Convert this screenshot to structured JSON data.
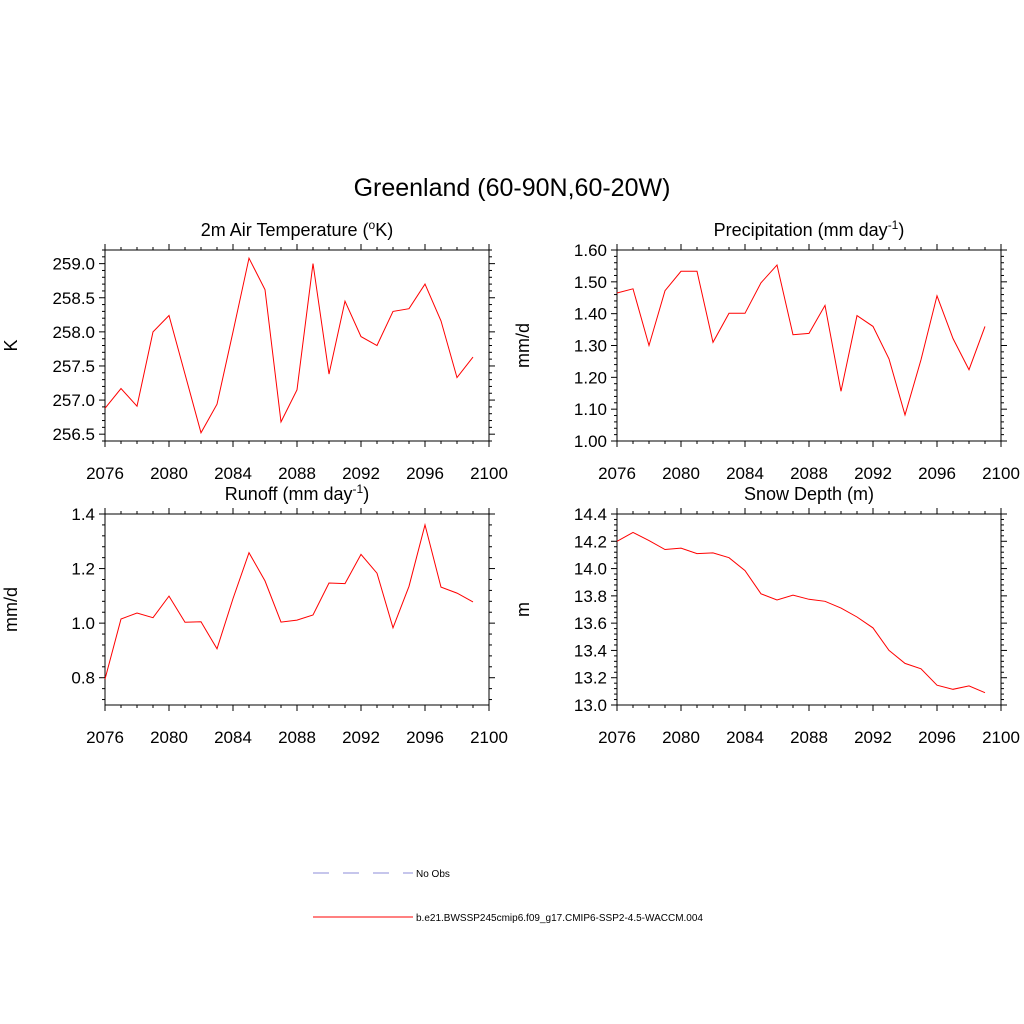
{
  "title": "Greenland (60-90N,60-20W)",
  "line_color": "#ff0000",
  "legend": [
    {
      "label": "No Obs",
      "style": "dashed",
      "color": "#b3b3e6"
    },
    {
      "label": "b.e21.BWSSP245cmip6.f09_g17.CMIP6-SSP2-4.5-WACCM.004",
      "style": "solid",
      "color": "#ff0000"
    }
  ],
  "chart_data": [
    {
      "type": "line",
      "title": "2m Air Temperature (",
      "title_sup": "o",
      "title_after": "K)",
      "title_sup2": "",
      "title_after2": "",
      "ylabel": "K",
      "xlim": [
        2076,
        2100
      ],
      "ylim": [
        256.4,
        259.2
      ],
      "xticks": [
        "2076",
        "2080",
        "2084",
        "2088",
        "2092",
        "2096",
        "2100"
      ],
      "yticks": [
        "256.5",
        "257.0",
        "257.5",
        "258.0",
        "258.5",
        "259.0"
      ],
      "x": [
        2076,
        2077,
        2078,
        2079,
        2080,
        2081,
        2082,
        2083,
        2084,
        2085,
        2086,
        2087,
        2088,
        2089,
        2090,
        2091,
        2092,
        2093,
        2094,
        2095,
        2096,
        2097,
        2098,
        2099
      ],
      "values": [
        256.88,
        257.17,
        256.91,
        258.0,
        258.24,
        257.38,
        256.52,
        256.94,
        258.0,
        259.08,
        258.62,
        256.68,
        257.15,
        259.0,
        257.38,
        258.45,
        257.93,
        257.8,
        258.3,
        258.34,
        258.7,
        258.16,
        257.33,
        257.63
      ]
    },
    {
      "type": "line",
      "title": "Precipitation (mm day",
      "title_sup": "-1",
      "title_after": ")",
      "ylabel": "mm/d",
      "xlim": [
        2076,
        2100
      ],
      "ylim": [
        1.0,
        1.6
      ],
      "xticks": [
        "2076",
        "2080",
        "2084",
        "2088",
        "2092",
        "2096",
        "2100"
      ],
      "yticks": [
        "1.00",
        "1.10",
        "1.20",
        "1.30",
        "1.40",
        "1.50",
        "1.60"
      ],
      "x": [
        2076,
        2077,
        2078,
        2079,
        2080,
        2081,
        2082,
        2083,
        2084,
        2085,
        2086,
        2087,
        2088,
        2089,
        2090,
        2091,
        2092,
        2093,
        2094,
        2095,
        2096,
        2097,
        2098,
        2099
      ],
      "values": [
        1.465,
        1.478,
        1.3,
        1.472,
        1.533,
        1.533,
        1.31,
        1.401,
        1.401,
        1.497,
        1.553,
        1.334,
        1.338,
        1.426,
        1.156,
        1.394,
        1.36,
        1.258,
        1.082,
        1.255,
        1.456,
        1.322,
        1.224,
        1.36
      ]
    },
    {
      "type": "line",
      "title": "Runoff (mm day",
      "title_sup": "-1",
      "title_after": ")",
      "ylabel": "mm/d",
      "xlim": [
        2076,
        2100
      ],
      "ylim": [
        0.7,
        1.4
      ],
      "xticks": [
        "2076",
        "2080",
        "2084",
        "2088",
        "2092",
        "2096",
        "2100"
      ],
      "yticks": [
        "0.8",
        "1.0",
        "1.2",
        "1.4"
      ],
      "x": [
        2076,
        2077,
        2078,
        2079,
        2080,
        2081,
        2082,
        2083,
        2084,
        2085,
        2086,
        2087,
        2088,
        2089,
        2090,
        2091,
        2092,
        2093,
        2094,
        2095,
        2096,
        2097,
        2098,
        2099
      ],
      "values": [
        0.795,
        1.015,
        1.037,
        1.02,
        1.099,
        1.003,
        1.005,
        0.906,
        1.09,
        1.258,
        1.155,
        1.004,
        1.011,
        1.03,
        1.147,
        1.145,
        1.252,
        1.183,
        0.983,
        1.135,
        1.36,
        1.132,
        1.11,
        1.078
      ]
    },
    {
      "type": "line",
      "title": "Snow Depth (m)",
      "title_sup": "",
      "title_after": "",
      "ylabel": "m",
      "xlim": [
        2076,
        2100
      ],
      "ylim": [
        13.0,
        14.4
      ],
      "xticks": [
        "2076",
        "2080",
        "2084",
        "2088",
        "2092",
        "2096",
        "2100"
      ],
      "yticks": [
        "13.0",
        "13.2",
        "13.4",
        "13.6",
        "13.8",
        "14.0",
        "14.2",
        "14.4"
      ],
      "x": [
        2076,
        2077,
        2078,
        2079,
        2080,
        2081,
        2082,
        2083,
        2084,
        2085,
        2086,
        2087,
        2088,
        2089,
        2090,
        2091,
        2092,
        2093,
        2094,
        2095,
        2096,
        2097,
        2098,
        2099
      ],
      "values": [
        14.2,
        14.265,
        14.205,
        14.14,
        14.15,
        14.11,
        14.115,
        14.08,
        13.985,
        13.815,
        13.77,
        13.805,
        13.775,
        13.76,
        13.71,
        13.645,
        13.565,
        13.4,
        13.305,
        13.265,
        13.145,
        13.115,
        13.14,
        13.09
      ]
    }
  ]
}
